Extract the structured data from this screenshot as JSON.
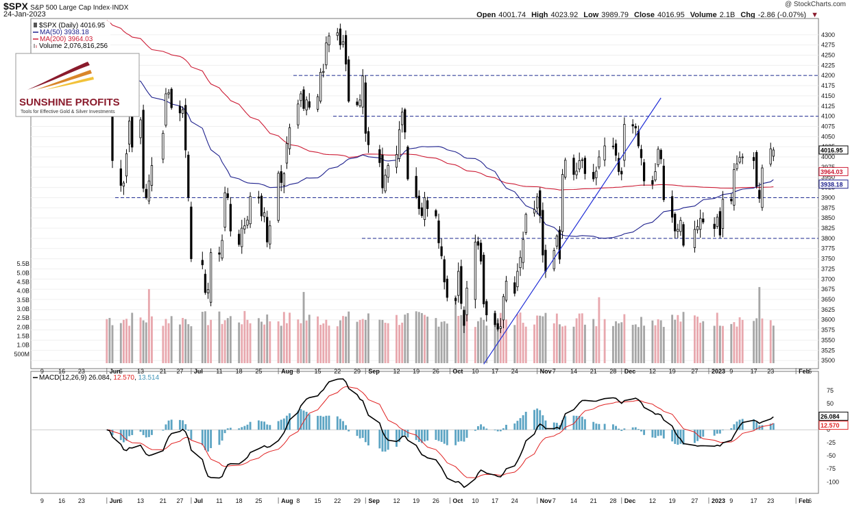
{
  "header": {
    "symbol": "$SPX",
    "name": "S&P 500 Large Cap Index",
    "exchange": "INDX",
    "date": "24-Jan-2023",
    "credit": "@ StockCharts.com",
    "open_label": "Open",
    "open": "4001.74",
    "high_label": "High",
    "high": "4023.92",
    "low_label": "Low",
    "low": "3989.79",
    "close_label": "Close",
    "close": "4016.95",
    "volume_label": "Volume",
    "volume": "2.1B",
    "chg_label": "Chg",
    "chg": "-2.86 (-0.07%)"
  },
  "logo": {
    "brand": "SUNSHINE PROFITS",
    "tagline": "Tools for Effective Gold & Silver Investments"
  },
  "colors": {
    "up_volume": "#e8a8ae",
    "down_volume": "#a6a6a6",
    "ma50": "#1c1f8c",
    "ma200": "#cc1a33",
    "macd": "#000000",
    "signal": "#e02020",
    "histogram": "#3f94b8",
    "trendline": "#1f2dd6",
    "levels": "#1e2a90"
  },
  "chart_data": [
    {
      "type": "candlestick",
      "title": "$SPX (Daily) 4016.95",
      "legend": [
        "$SPX (Daily) 4016.95",
        "MA(50) 3938.18",
        "MA(200) 3964.03",
        "Volume 2,076,816,256"
      ],
      "legend_placement": "top-left",
      "y_ticks": [
        "4300",
        "4275",
        "4250",
        "4225",
        "4200",
        "4175",
        "4150",
        "4125",
        "4100",
        "4075",
        "4050",
        "4025",
        "4000",
        "3975",
        "3950",
        "3925",
        "3900",
        "3875",
        "3850",
        "3825",
        "3800",
        "3775",
        "3750",
        "3725",
        "3700",
        "3675",
        "3650",
        "3625",
        "3600",
        "3575",
        "3550",
        "3525",
        "3500"
      ],
      "ylim": [
        3480,
        4340
      ],
      "volume_ticks": [
        "5.5B",
        "5.0B",
        "4.5B",
        "4.0B",
        "3.5B",
        "3.0B",
        "2.5B",
        "2.0B",
        "1.5B",
        "1.0B",
        "500M"
      ],
      "volume_lim": [
        0,
        6.3
      ],
      "x_labels": [
        "9",
        "16",
        "23",
        "Jun",
        "6",
        "13",
        "21",
        "27",
        "Jul",
        "11",
        "18",
        "25",
        "Aug",
        "8",
        "15",
        "22",
        "29",
        "Sep",
        "12",
        "19",
        "26",
        "Oct",
        "10",
        "17",
        "24",
        "Nov",
        "7",
        "14",
        "21",
        "28",
        "Dec",
        "12",
        "19",
        "27",
        "2023",
        "9",
        "17",
        "23",
        "Feb",
        "6"
      ],
      "x_range": [
        "2022-05-05",
        "2023-02-09"
      ],
      "last_date": "2023-01-24",
      "price_labels": {
        "close": "4016.95",
        "ma200": "3964.03",
        "ma50": "3938.18"
      },
      "horizontal_levels": [
        4200,
        4100,
        3900,
        3800
      ],
      "trendline": [
        {
          "date": "2022-10-13",
          "price": 3491
        },
        {
          "date": "2022-12-15",
          "price": 4145
        }
      ],
      "closes": [
        4146,
        4123,
        3991,
        3930,
        3936,
        4008,
        4088,
        4024,
        4091,
        3923,
        3900,
        3941,
        3979,
        4058,
        4155,
        4158,
        4121,
        4108,
        4116,
        4017,
        3901,
        3750,
        3735,
        3667,
        3674,
        3765,
        3761,
        3795,
        3912,
        3900,
        3818,
        3785,
        3825,
        3831,
        3845,
        3903,
        3899,
        3855,
        3863,
        3791,
        3831,
        3960,
        3937,
        3959,
        4033,
        4072,
        4130,
        4155,
        4119,
        4140,
        4122,
        4148,
        4208,
        4210,
        4280,
        4297,
        4305,
        4275,
        4283,
        4228,
        4137,
        4128,
        4140,
        4199,
        4058,
        4030,
        3986,
        3924,
        3955,
        3979,
        4006,
        4067,
        4110,
        4061,
        3946,
        3901,
        3873,
        3856,
        3900,
        3873,
        3855,
        3789,
        3757,
        3693,
        3655,
        3647,
        3719,
        3640,
        3586,
        3678,
        3791,
        3783,
        3744,
        3639,
        3612,
        3588,
        3577,
        3583,
        3657,
        3695,
        3665,
        3719,
        3753,
        3797,
        3859,
        3871,
        3902,
        3856,
        3759,
        3719,
        3770,
        3806,
        3749,
        3957,
        3992,
        3957,
        3965,
        3991,
        3993,
        3959,
        3946,
        3965,
        4000,
        4027,
        4026,
        4004,
        3964,
        3958,
        4080,
        4076,
        4071,
        4027,
        3998,
        3941,
        3933,
        3964,
        4019,
        3995,
        3895,
        3852,
        3818,
        3822,
        3844,
        3783,
        3822,
        3829,
        3849,
        3840,
        3824,
        3852,
        3808,
        3896,
        3892,
        3969,
        3983,
        3999,
        4000,
        3991,
        3928,
        3898,
        3973,
        4020,
        4017
      ]
    },
    {
      "type": "line",
      "title": "MACD(12,26,9) 26.084, 12.570, 13.514",
      "series": [
        {
          "name": "MACD(12,26,9)",
          "last": "26.084"
        },
        {
          "name": "Signal",
          "last": "12.570"
        },
        {
          "name": "Histogram",
          "last": "13.514"
        }
      ],
      "y_ticks": [
        "75",
        "50",
        "25",
        "0",
        "-25",
        "-50",
        "-75",
        "-100"
      ],
      "ylim": [
        -122,
        112
      ],
      "value_labels": {
        "macd": "26.084",
        "signal": "12.570"
      }
    }
  ]
}
